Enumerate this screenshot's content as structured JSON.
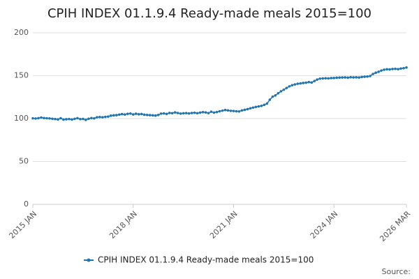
{
  "chart_data": {
    "type": "line",
    "title": "CPIH INDEX 01.1.9.4 Ready-made meals 2015=100",
    "categories": [
      "2015 JAN",
      null,
      null,
      null,
      null,
      null,
      null,
      null,
      null,
      null,
      null,
      null,
      null,
      null,
      null,
      null,
      null,
      null,
      null,
      null,
      null,
      null,
      null,
      null,
      null,
      null,
      null,
      null,
      null,
      null,
      null,
      null,
      null,
      null,
      null,
      null,
      "2018 JAN",
      null,
      null,
      null,
      null,
      null,
      null,
      null,
      null,
      null,
      null,
      null,
      null,
      null,
      null,
      null,
      null,
      null,
      null,
      null,
      null,
      null,
      null,
      null,
      null,
      null,
      null,
      null,
      null,
      null,
      null,
      null,
      null,
      null,
      null,
      null,
      "2021 JAN",
      null,
      null,
      null,
      null,
      null,
      null,
      null,
      null,
      null,
      null,
      null,
      null,
      null,
      null,
      null,
      null,
      null,
      null,
      null,
      null,
      null,
      null,
      null,
      null,
      null,
      null,
      null,
      null,
      null,
      null,
      null,
      null,
      null,
      null,
      null,
      "2024 JAN",
      null,
      null,
      null,
      null,
      null,
      null,
      null,
      null,
      null,
      null,
      null,
      null,
      null,
      null,
      null,
      null,
      null,
      null,
      null,
      null,
      null,
      null,
      null,
      null,
      null,
      "2026 MAR"
    ],
    "series": [
      {
        "name": "CPIH INDEX 01.1.9.4 Ready-made meals 2015=100",
        "color": "#1d76b5",
        "values": [
          100.3,
          100.1,
          100.5,
          101.2,
          100.6,
          100.4,
          100.2,
          99.8,
          99.5,
          99.0,
          100.4,
          98.8,
          99.2,
          99.5,
          98.9,
          99.7,
          100.5,
          99.4,
          99.6,
          98.5,
          99.8,
          100.6,
          100.2,
          101.5,
          101.8,
          101.5,
          102.0,
          102.3,
          103.4,
          103.8,
          104.0,
          104.6,
          105.2,
          104.7,
          105.5,
          105.9,
          104.8,
          105.6,
          105.0,
          105.3,
          104.5,
          104.2,
          104.0,
          103.8,
          103.5,
          104.2,
          105.8,
          106.0,
          105.4,
          106.6,
          106.3,
          107.2,
          106.5,
          105.8,
          106.2,
          106.4,
          106.0,
          106.5,
          106.8,
          106.3,
          107.0,
          107.5,
          107.2,
          106.4,
          108.0,
          107.0,
          107.6,
          108.5,
          109.2,
          110.0,
          109.5,
          109.0,
          108.8,
          108.5,
          108.3,
          109.5,
          110.2,
          111.0,
          112.0,
          112.8,
          113.6,
          114.2,
          114.8,
          116.0,
          117.5,
          122.0,
          125.5,
          127.0,
          129.5,
          131.8,
          133.6,
          135.6,
          137.5,
          138.9,
          139.8,
          140.6,
          141.0,
          141.5,
          141.8,
          142.5,
          142.0,
          143.8,
          145.5,
          146.5,
          146.8,
          147.0,
          146.8,
          147.2,
          147.3,
          147.6,
          147.8,
          147.9,
          148.0,
          147.7,
          148.2,
          148.0,
          148.1,
          147.9,
          148.5,
          148.8,
          149.0,
          149.6,
          152.0,
          153.5,
          154.5,
          156.0,
          157.0,
          157.5,
          157.3,
          157.8,
          158.0,
          157.6,
          158.3,
          158.7,
          159.5
        ]
      }
    ],
    "ylim": [
      0,
      200
    ],
    "yticks": [
      0,
      50,
      100,
      150,
      200
    ],
    "grid": true,
    "source": "Source:"
  }
}
